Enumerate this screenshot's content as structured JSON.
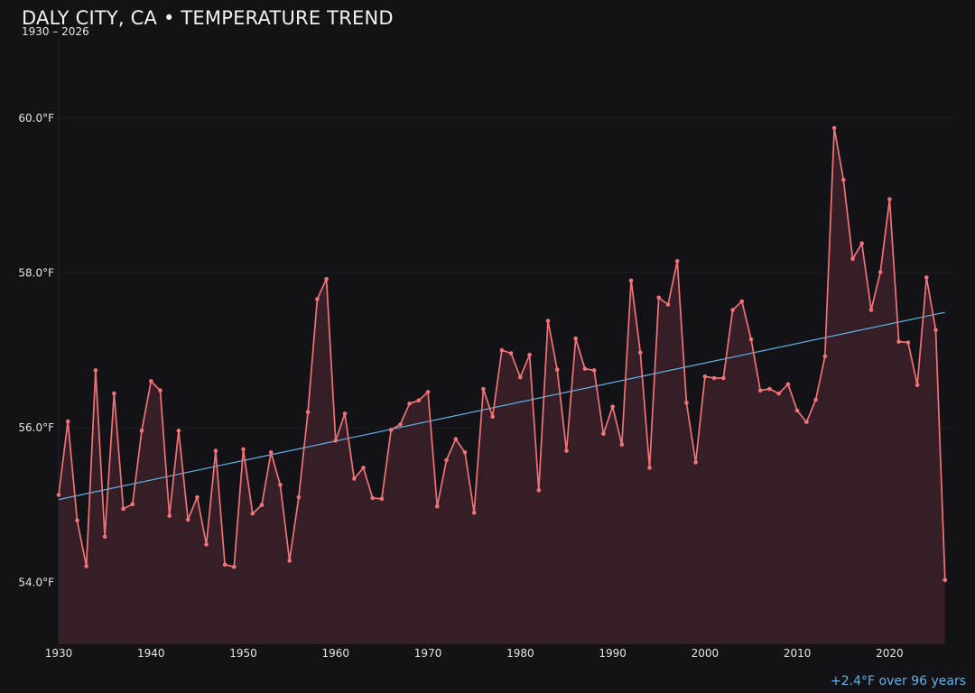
{
  "header": {
    "title": "DALY CITY, CA • TEMPERATURE TREND",
    "subtitle": "1930 – 2026"
  },
  "footer": {
    "trend_note": "+2.4°F over 96 years"
  },
  "colors": {
    "background": "#131217",
    "series": "#f07378",
    "area_fill": "#351e25",
    "trend": "#5fb3e6",
    "grid": "#1d1c22"
  },
  "chart_data": {
    "type": "line",
    "xlim": [
      1930,
      2027
    ],
    "ylim": [
      53.2,
      61.0
    ],
    "x_ticks": [
      1930,
      1940,
      1950,
      1960,
      1970,
      1980,
      1990,
      2000,
      2010,
      2020
    ],
    "y_ticks": [
      54.0,
      56.0,
      58.0,
      60.0
    ],
    "y_tick_labels": [
      "54.0°F",
      "56.0°F",
      "58.0°F",
      "60.0°F"
    ],
    "grid": "horizontal",
    "area_fill": true,
    "x": [
      1930,
      1931,
      1932,
      1933,
      1934,
      1935,
      1936,
      1937,
      1938,
      1939,
      1940,
      1941,
      1942,
      1943,
      1944,
      1945,
      1946,
      1947,
      1948,
      1949,
      1950,
      1951,
      1952,
      1953,
      1954,
      1955,
      1956,
      1957,
      1958,
      1959,
      1960,
      1961,
      1962,
      1963,
      1964,
      1965,
      1966,
      1967,
      1968,
      1969,
      1970,
      1971,
      1972,
      1973,
      1974,
      1975,
      1976,
      1977,
      1978,
      1979,
      1980,
      1981,
      1982,
      1983,
      1984,
      1985,
      1986,
      1987,
      1988,
      1989,
      1990,
      1991,
      1992,
      1993,
      1994,
      1995,
      1996,
      1997,
      1998,
      1999,
      2000,
      2001,
      2002,
      2003,
      2004,
      2005,
      2006,
      2007,
      2008,
      2009,
      2010,
      2011,
      2012,
      2013,
      2014,
      2015,
      2016,
      2017,
      2018,
      2019,
      2020,
      2021,
      2022,
      2023,
      2024,
      2025,
      2026
    ],
    "series": [
      {
        "values": [
          55.13,
          56.08,
          54.8,
          54.21,
          56.74,
          54.59,
          56.44,
          54.95,
          55.01,
          55.96,
          56.6,
          56.48,
          54.86,
          55.96,
          54.81,
          55.1,
          54.49,
          55.7,
          54.23,
          54.2,
          55.72,
          54.89,
          55.0,
          55.68,
          55.26,
          54.28,
          55.1,
          56.2,
          57.66,
          57.92,
          55.83,
          56.18,
          55.34,
          55.48,
          55.09,
          55.08,
          55.97,
          56.04,
          56.31,
          56.35,
          56.46,
          54.98,
          55.58,
          55.85,
          55.68,
          54.9,
          56.5,
          56.14,
          57.0,
          56.96,
          56.65,
          56.94,
          55.19,
          57.38,
          56.75,
          55.7,
          57.15,
          56.76,
          56.74,
          55.92,
          56.27,
          55.78,
          57.9,
          56.97,
          55.48,
          57.68,
          57.59,
          58.15,
          56.32,
          55.55,
          56.66,
          56.64,
          56.64,
          57.52,
          57.63,
          57.14,
          56.48,
          56.5,
          56.44,
          56.56,
          56.22,
          56.07,
          56.36,
          56.92,
          59.87,
          59.2,
          58.18,
          58.38,
          57.52,
          58.01,
          58.95,
          57.11,
          57.1,
          56.55,
          57.94,
          57.26,
          54.03
        ]
      }
    ],
    "trend_line": {
      "x": [
        1930,
        2026
      ],
      "y": [
        55.07,
        57.49
      ]
    }
  }
}
